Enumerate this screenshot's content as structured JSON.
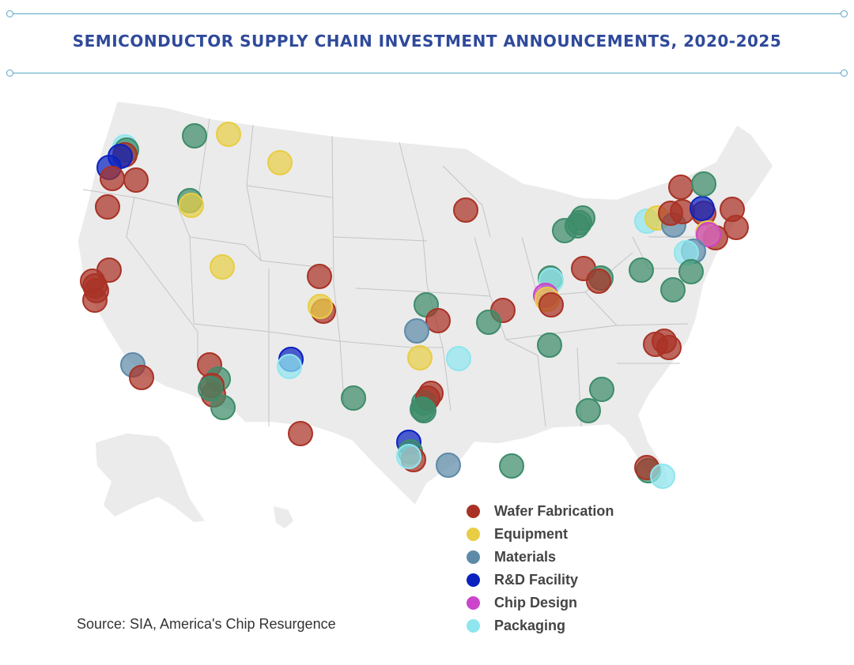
{
  "title": "SEMICONDUCTOR SUPPLY CHAIN INVESTMENT ANNOUNCEMENTS, 2020-2025",
  "source": "Source: SIA, America's Chip Resurgence",
  "map": {
    "region": "United States (contiguous + Alaska inset)",
    "land_color": "#ebebeb",
    "border_color": "#bdbdbd"
  },
  "legend": [
    {
      "key": "wafer",
      "label": "Wafer Fabrication",
      "color": "#a93226"
    },
    {
      "key": "equipment",
      "label": "Equipment",
      "color": "#e8cd45"
    },
    {
      "key": "materials",
      "label": "Materials",
      "color": "#5d8aa8"
    },
    {
      "key": "rnd",
      "label": "R&D Facility",
      "color": "#0a22c0"
    },
    {
      "key": "design",
      "label": "Chip Design",
      "color": "#cc44cc"
    },
    {
      "key": "packaging",
      "label": "Packaging",
      "color": "#8fe6ee"
    }
  ],
  "other_color": "#3d8c6a",
  "investments": [
    {
      "loc": "Portland, OR area",
      "type": "packaging"
    },
    {
      "loc": "Portland, OR area",
      "type": "other"
    },
    {
      "loc": "Portland, OR area",
      "type": "wafer"
    },
    {
      "loc": "Portland, OR area",
      "type": "rnd"
    },
    {
      "loc": "Portland, OR area",
      "type": "rnd"
    },
    {
      "loc": "Portland, OR area",
      "type": "wafer"
    },
    {
      "loc": "Oregon",
      "type": "wafer"
    },
    {
      "loc": "Oregon",
      "type": "wafer"
    },
    {
      "loc": "Oregon",
      "type": "wafer"
    },
    {
      "loc": "Washington (Spokane)",
      "type": "other"
    },
    {
      "loc": "Montana",
      "type": "equipment"
    },
    {
      "loc": "Montana",
      "type": "equipment"
    },
    {
      "loc": "Boise, ID",
      "type": "other"
    },
    {
      "loc": "Boise, ID",
      "type": "equipment"
    },
    {
      "loc": "Northern California",
      "type": "wafer"
    },
    {
      "loc": "Bay Area, CA",
      "type": "wafer"
    },
    {
      "loc": "Bay Area, CA",
      "type": "wafer"
    },
    {
      "loc": "Bay Area, CA",
      "type": "wafer"
    },
    {
      "loc": "Bay Area, CA",
      "type": "materials"
    },
    {
      "loc": "Southern California",
      "type": "wafer"
    },
    {
      "loc": "Southern California",
      "type": "equipment"
    },
    {
      "loc": "Utah",
      "type": "wafer"
    },
    {
      "loc": "Colorado",
      "type": "wafer"
    },
    {
      "loc": "Colorado",
      "type": "equipment"
    },
    {
      "loc": "Colorado",
      "type": "wafer"
    },
    {
      "loc": "Phoenix, AZ",
      "type": "other"
    },
    {
      "loc": "Phoenix, AZ",
      "type": "wafer"
    },
    {
      "loc": "Phoenix, AZ",
      "type": "wafer"
    },
    {
      "loc": "Phoenix, AZ",
      "type": "other"
    },
    {
      "loc": "Phoenix, AZ",
      "type": "other"
    },
    {
      "loc": "Phoenix, AZ",
      "type": "rnd"
    },
    {
      "loc": "Albuquerque, NM",
      "type": "packaging"
    },
    {
      "loc": "Albuquerque, NM",
      "type": "wafer"
    },
    {
      "loc": "El Paso, TX",
      "type": "other"
    },
    {
      "loc": "West Texas",
      "type": "wafer"
    },
    {
      "loc": "Dallas, TX",
      "type": "other"
    },
    {
      "loc": "Dallas, TX",
      "type": "wafer"
    },
    {
      "loc": "Dallas, TX",
      "type": "other"
    },
    {
      "loc": "Dallas, TX",
      "type": "other"
    },
    {
      "loc": "Dallas, TX",
      "type": "rnd"
    },
    {
      "loc": "Austin, TX",
      "type": "other"
    },
    {
      "loc": "Austin, TX",
      "type": "wafer"
    },
    {
      "loc": "Austin, TX",
      "type": "packaging"
    },
    {
      "loc": "Austin, TX",
      "type": "materials"
    },
    {
      "loc": "Houston, TX",
      "type": "other"
    },
    {
      "loc": "Louisiana",
      "type": "equipment"
    },
    {
      "loc": "Oklahoma",
      "type": "other"
    },
    {
      "loc": "Kansas City",
      "type": "wafer"
    },
    {
      "loc": "Kansas City",
      "type": "materials"
    },
    {
      "loc": "Kansas City",
      "type": "packaging"
    },
    {
      "loc": "Arkansas",
      "type": "wafer"
    },
    {
      "loc": "Minnesota",
      "type": "wafer"
    },
    {
      "loc": "Missouri",
      "type": "other"
    },
    {
      "loc": "Missouri",
      "type": "other"
    },
    {
      "loc": "Michigan",
      "type": "other"
    },
    {
      "loc": "Michigan",
      "type": "other"
    },
    {
      "loc": "Michigan",
      "type": "other"
    },
    {
      "loc": "Michigan",
      "type": "other"
    },
    {
      "loc": "Indiana",
      "type": "packaging"
    },
    {
      "loc": "Indiana",
      "type": "design"
    },
    {
      "loc": "Indiana",
      "type": "equipment"
    },
    {
      "loc": "Indiana",
      "type": "wafer"
    },
    {
      "loc": "Indiana",
      "type": "wafer"
    },
    {
      "loc": "Ohio",
      "type": "other"
    },
    {
      "loc": "Ohio",
      "type": "wafer"
    },
    {
      "loc": "Ohio",
      "type": "other"
    },
    {
      "loc": "Kentucky",
      "type": "other"
    },
    {
      "loc": "Pittsburgh, PA",
      "type": "packaging"
    },
    {
      "loc": "Upstate New York",
      "type": "equipment"
    },
    {
      "loc": "Upstate New York",
      "type": "materials"
    },
    {
      "loc": "Upstate New York",
      "type": "wafer"
    },
    {
      "loc": "Upstate New York",
      "type": "wafer"
    },
    {
      "loc": "Upstate New York",
      "type": "wafer"
    },
    {
      "loc": "Upstate New York",
      "type": "rnd"
    },
    {
      "loc": "Upstate New York",
      "type": "wafer"
    },
    {
      "loc": "Upstate New York",
      "type": "other"
    },
    {
      "loc": "Upstate New York",
      "type": "wafer"
    },
    {
      "loc": "Hudson Valley, NY",
      "type": "equipment"
    },
    {
      "loc": "Hudson Valley, NY",
      "type": "design"
    },
    {
      "loc": "Hudson Valley, NY",
      "type": "wafer"
    },
    {
      "loc": "Massachusetts",
      "type": "wafer"
    },
    {
      "loc": "Massachusetts",
      "type": "materials"
    },
    {
      "loc": "New Jersey",
      "type": "packaging"
    },
    {
      "loc": "New Jersey",
      "type": "other"
    },
    {
      "loc": "New Jersey",
      "type": "other"
    },
    {
      "loc": "Virginia",
      "type": "wafer"
    },
    {
      "loc": "North Carolina",
      "type": "wafer"
    },
    {
      "loc": "North Carolina",
      "type": "wafer"
    },
    {
      "loc": "North Carolina",
      "type": "other"
    },
    {
      "loc": "Tennessee",
      "type": "other"
    },
    {
      "loc": "Georgia",
      "type": "other"
    },
    {
      "loc": "Georgia",
      "type": "wafer"
    },
    {
      "loc": "Florida",
      "type": "packaging"
    },
    {
      "loc": "Florida",
      "type": "wafer"
    },
    {
      "loc": "Florida",
      "type": "wafer"
    }
  ]
}
